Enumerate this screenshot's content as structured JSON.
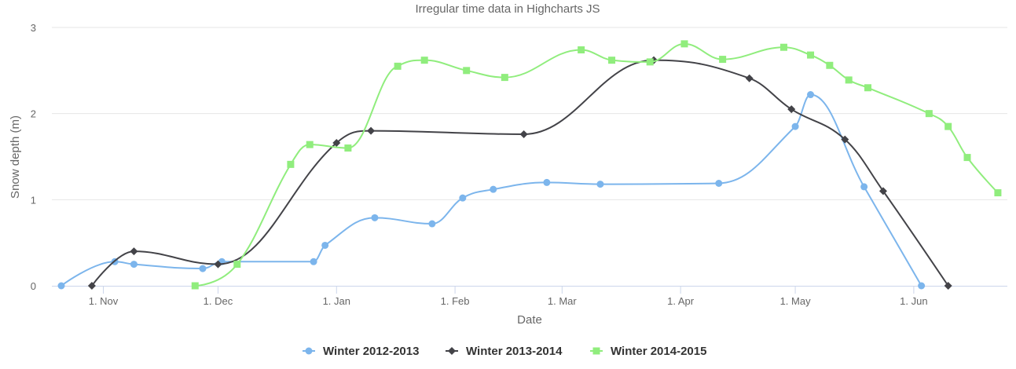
{
  "chart_data": {
    "type": "line",
    "subtype": "spline",
    "title": "Irregular time data in Highcharts JS",
    "xlabel": "Date",
    "ylabel": "Snow depth (m)",
    "ylim": [
      0,
      3
    ],
    "yticks": [
      "0",
      "1",
      "2",
      "3"
    ],
    "xticks": [
      {
        "label": "1. Nov",
        "date": "1970-11-01"
      },
      {
        "label": "1. Dec",
        "date": "1970-12-01"
      },
      {
        "label": "1. Jan",
        "date": "1971-01-01"
      },
      {
        "label": "1. Feb",
        "date": "1971-02-01"
      },
      {
        "label": "1. Mar",
        "date": "1971-03-01"
      },
      {
        "label": "1. Apr",
        "date": "1971-04-01"
      },
      {
        "label": "1. May",
        "date": "1971-05-01"
      },
      {
        "label": "1. Jun",
        "date": "1971-06-01"
      }
    ],
    "grid": true,
    "legend": "bottom-center",
    "series": [
      {
        "name": "Winter 2012-2013",
        "color": "#7cb5ec",
        "marker": "circle",
        "data": [
          [
            "1970-10-21",
            0
          ],
          [
            "1970-11-04",
            0.28
          ],
          [
            "1970-11-09",
            0.25
          ],
          [
            "1970-11-27",
            0.2
          ],
          [
            "1970-12-02",
            0.28
          ],
          [
            "1970-12-26",
            0.28
          ],
          [
            "1970-12-29",
            0.47
          ],
          [
            "1971-01-11",
            0.79
          ],
          [
            "1971-01-26",
            0.72
          ],
          [
            "1971-02-03",
            1.02
          ],
          [
            "1971-02-11",
            1.12
          ],
          [
            "1971-02-25",
            1.2
          ],
          [
            "1971-03-11",
            1.18
          ],
          [
            "1971-04-11",
            1.19
          ],
          [
            "1971-05-01",
            1.85
          ],
          [
            "1971-05-05",
            2.22
          ],
          [
            "1971-05-19",
            1.15
          ],
          [
            "1971-06-03",
            0
          ]
        ]
      },
      {
        "name": "Winter 2013-2014",
        "color": "#434348",
        "marker": "diamond",
        "data": [
          [
            "1970-10-29",
            0
          ],
          [
            "1970-11-09",
            0.4
          ],
          [
            "1970-12-01",
            0.25
          ],
          [
            "1971-01-01",
            1.66
          ],
          [
            "1971-01-10",
            1.8
          ],
          [
            "1971-02-19",
            1.76
          ],
          [
            "1971-03-25",
            2.62
          ],
          [
            "1971-04-19",
            2.41
          ],
          [
            "1971-04-30",
            2.05
          ],
          [
            "1971-05-14",
            1.7
          ],
          [
            "1971-05-24",
            1.1
          ],
          [
            "1971-06-10",
            0
          ]
        ]
      },
      {
        "name": "Winter 2014-2015",
        "color": "#90ed7d",
        "marker": "square",
        "data": [
          [
            "1970-11-25",
            0
          ],
          [
            "1970-12-06",
            0.25
          ],
          [
            "1970-12-20",
            1.41
          ],
          [
            "1970-12-25",
            1.64
          ],
          [
            "1971-01-04",
            1.6
          ],
          [
            "1971-01-17",
            2.55
          ],
          [
            "1971-01-24",
            2.62
          ],
          [
            "1971-02-04",
            2.5
          ],
          [
            "1971-02-14",
            2.42
          ],
          [
            "1971-03-06",
            2.74
          ],
          [
            "1971-03-14",
            2.62
          ],
          [
            "1971-03-24",
            2.6
          ],
          [
            "1971-04-02",
            2.81
          ],
          [
            "1971-04-12",
            2.63
          ],
          [
            "1971-04-28",
            2.77
          ],
          [
            "1971-05-05",
            2.68
          ],
          [
            "1971-05-10",
            2.56
          ],
          [
            "1971-05-15",
            2.39
          ],
          [
            "1971-05-20",
            2.3
          ],
          [
            "1971-06-05",
            2
          ],
          [
            "1971-06-10",
            1.85
          ],
          [
            "1971-06-15",
            1.49
          ],
          [
            "1971-06-23",
            1.08
          ]
        ]
      }
    ]
  }
}
